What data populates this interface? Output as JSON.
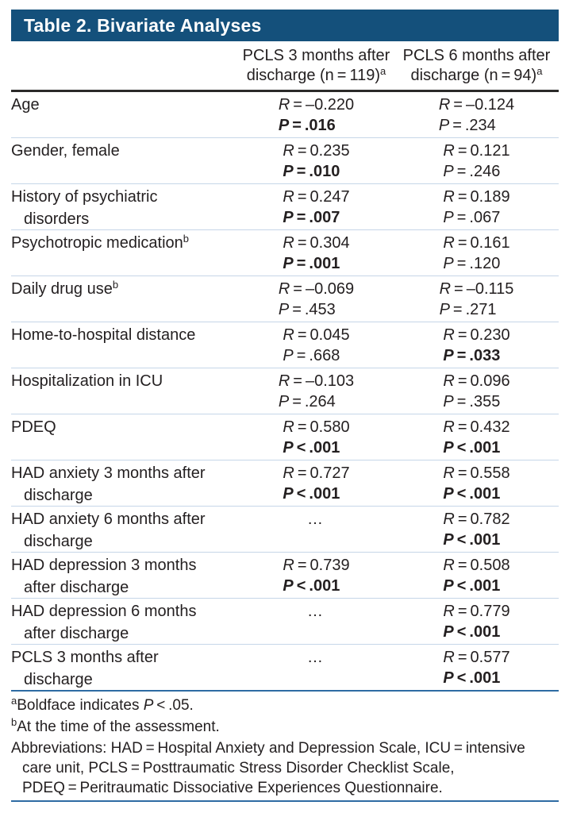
{
  "title": "Table 2. Bivariate Analyses",
  "columns": [
    {
      "line1": "PCLS 3 months after",
      "line2": "discharge (n = 119)",
      "sup": "a"
    },
    {
      "line1": "PCLS 6 months after",
      "line2": "discharge (n = 94)",
      "sup": "a"
    }
  ],
  "rows": [
    {
      "label1": "Age",
      "c1": {
        "v1": "R",
        "rel1": " = ",
        "x1": "–0.220",
        "v2": "P",
        "rel2": " = ",
        "x2": ".016",
        "bold": true
      },
      "c2": {
        "v1": "R",
        "rel1": " = ",
        "x1": "–0.124",
        "v2": "P",
        "rel2": " = ",
        "x2": ".234"
      }
    },
    {
      "label1": "Gender, female",
      "c1": {
        "v1": "R",
        "rel1": " = ",
        "x1": "0.235",
        "v2": "P",
        "rel2": " = ",
        "x2": ".010",
        "bold": true
      },
      "c2": {
        "v1": "R",
        "rel1": " = ",
        "x1": "0.121",
        "v2": "P",
        "rel2": " = ",
        "x2": ".246"
      }
    },
    {
      "label1": "History of psychiatric",
      "label2": "disorders",
      "c1": {
        "v1": "R",
        "rel1": " = ",
        "x1": "0.247",
        "v2": "P",
        "rel2": " = ",
        "x2": ".007",
        "bold": true
      },
      "c2": {
        "v1": "R",
        "rel1": " = ",
        "x1": "0.189",
        "v2": "P",
        "rel2": " = ",
        "x2": ".067"
      }
    },
    {
      "label1": "Psychotropic medication",
      "sup": "b",
      "c1": {
        "v1": "R",
        "rel1": " = ",
        "x1": "0.304",
        "v2": "P",
        "rel2": " = ",
        "x2": ".001",
        "bold": true
      },
      "c2": {
        "v1": "R",
        "rel1": " = ",
        "x1": "0.161",
        "v2": "P",
        "rel2": " = ",
        "x2": ".120"
      }
    },
    {
      "label1": "Daily drug use",
      "sup": "b",
      "c1": {
        "v1": "R",
        "rel1": " = ",
        "x1": "–0.069",
        "v2": "P",
        "rel2": " = ",
        "x2": ".453"
      },
      "c2": {
        "v1": "R",
        "rel1": " = ",
        "x1": "–0.115",
        "v2": "P",
        "rel2": " = ",
        "x2": ".271"
      }
    },
    {
      "label1": "Home-to-hospital distance",
      "c1": {
        "v1": "R",
        "rel1": " = ",
        "x1": "0.045",
        "v2": "P",
        "rel2": " = ",
        "x2": ".668"
      },
      "c2": {
        "v1": "R",
        "rel1": " = ",
        "x1": "0.230",
        "v2": "P",
        "rel2": " = ",
        "x2": ".033",
        "bold": true
      }
    },
    {
      "label1": "Hospitalization in ICU",
      "c1": {
        "v1": "R",
        "rel1": " = ",
        "x1": "–0.103",
        "v2": "P",
        "rel2": " = ",
        "x2": ".264"
      },
      "c2": {
        "v1": "R",
        "rel1": " = ",
        "x1": "0.096",
        "v2": "P",
        "rel2": " = ",
        "x2": ".355"
      }
    },
    {
      "label1": "PDEQ",
      "c1": {
        "v1": "R",
        "rel1": " = ",
        "x1": "0.580",
        "v2": "P",
        "rel2": " < ",
        "x2": ".001",
        "bold": true
      },
      "c2": {
        "v1": "R",
        "rel1": " = ",
        "x1": "0.432",
        "v2": "P",
        "rel2": " < ",
        "x2": ".001",
        "bold": true
      }
    },
    {
      "label1": "HAD anxiety 3 months after",
      "label2": "discharge",
      "c1": {
        "v1": "R",
        "rel1": " = ",
        "x1": "0.727",
        "v2": "P",
        "rel2": " < ",
        "x2": ".001",
        "bold": true
      },
      "c2": {
        "v1": "R",
        "rel1": " = ",
        "x1": "0.558",
        "v2": "P",
        "rel2": " < ",
        "x2": ".001",
        "bold": true
      }
    },
    {
      "label1": "HAD anxiety 6 months after",
      "label2": "discharge",
      "c1": {
        "dots": "…"
      },
      "c2": {
        "v1": "R",
        "rel1": " = ",
        "x1": "0.782",
        "v2": "P",
        "rel2": " < ",
        "x2": ".001",
        "bold": true
      }
    },
    {
      "label1": "HAD depression 3 months",
      "label2": "after discharge",
      "c1": {
        "v1": "R",
        "rel1": " = ",
        "x1": "0.739",
        "v2": "P",
        "rel2": " < ",
        "x2": ".001",
        "bold": true
      },
      "c2": {
        "v1": "R",
        "rel1": " = ",
        "x1": "0.508",
        "v2": "P",
        "rel2": " < ",
        "x2": ".001",
        "bold": true
      }
    },
    {
      "label1": "HAD depression 6 months",
      "label2": "after discharge",
      "c1": {
        "dots": "…"
      },
      "c2": {
        "v1": "R",
        "rel1": " = ",
        "x1": "0.779",
        "v2": "P",
        "rel2": " < ",
        "x2": ".001",
        "bold": true
      }
    },
    {
      "label1": "PCLS 3 months after",
      "label2": "discharge",
      "c1": {
        "dots": "…"
      },
      "c2": {
        "v1": "R",
        "rel1": " = ",
        "x1": "0.577",
        "v2": "P",
        "rel2": " < ",
        "x2": ".001",
        "bold": true
      }
    }
  ],
  "footnotes": [
    {
      "sup": "a",
      "pre": "Boldface indicates ",
      "it": "P",
      "post": " < .05."
    },
    {
      "sup": "b",
      "pre": "At the time of the assessment."
    }
  ],
  "abbreviations": [
    "Abbreviations: HAD = Hospital Anxiety and Depression Scale, ICU = intensive",
    "care unit, PCLS = Posttraumatic Stress Disorder Checklist Scale,",
    "PDEQ = Peritraumatic Dissociative Experiences Questionnaire."
  ],
  "colors": {
    "header_band": "#14507b",
    "header_rule": "#2b2a29",
    "row_divider": "#c6d6e8",
    "section_rule": "#2e6ba3",
    "text": "#231f20",
    "title_text": "#ffffff"
  }
}
